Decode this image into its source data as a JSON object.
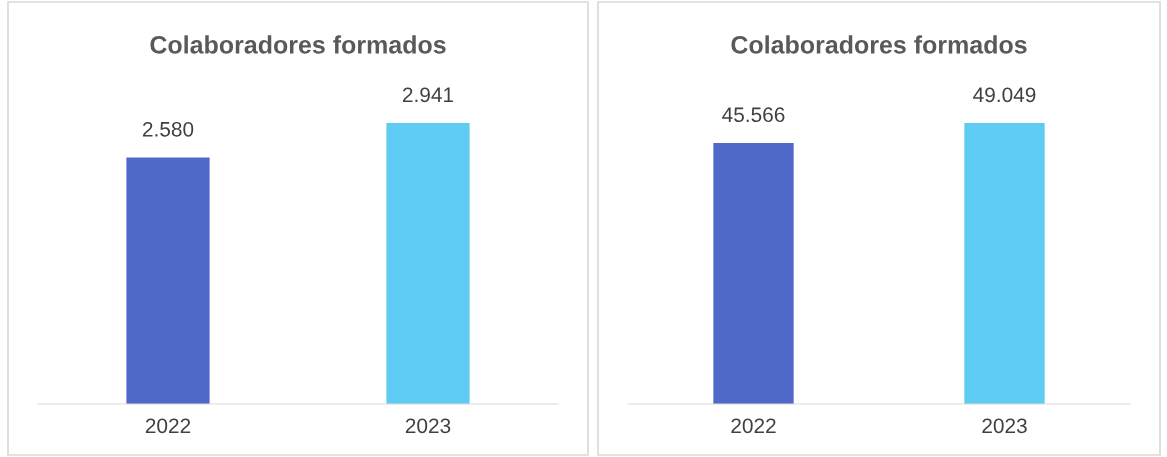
{
  "chart_data": [
    {
      "type": "bar",
      "title": "Colaboradores formados",
      "categories": [
        "2022",
        "2023"
      ],
      "values": [
        2580,
        2941
      ],
      "colors": [
        "#5068c8",
        "#5ecbf2"
      ],
      "value_labels": [
        "2.580",
        "2.941"
      ],
      "tick_labels": "x",
      "grid": false,
      "legend": false
    },
    {
      "type": "bar",
      "title": "Colaboradores formados",
      "categories": [
        "2022",
        "2023"
      ],
      "values": [
        45566,
        49049
      ],
      "colors": [
        "#5068c8",
        "#5ecbf2"
      ],
      "value_labels": [
        "45.566",
        "49.049"
      ],
      "tick_labels": "x",
      "grid": false,
      "legend": false
    }
  ]
}
